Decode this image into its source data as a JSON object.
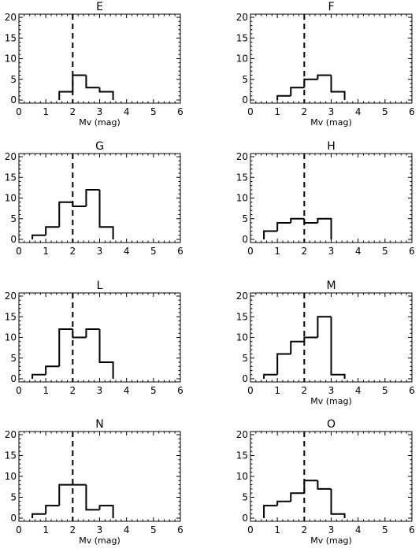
{
  "chart_data": [
    {
      "type": "bar",
      "title": "E",
      "xlabel": "Mv (mag)",
      "ylabel": "",
      "xlim": [
        0,
        6
      ],
      "ylim": [
        0,
        20
      ],
      "xticks": [
        "0",
        "1",
        "2",
        "3",
        "4",
        "5",
        "6"
      ],
      "yticks": [
        "0",
        "5",
        "10",
        "15",
        "20"
      ],
      "reference_line_x": 2,
      "bin_edges": [
        1.5,
        2.0,
        2.5,
        3.0,
        3.5
      ],
      "values": [
        2,
        6,
        3,
        2
      ]
    },
    {
      "type": "bar",
      "title": "F",
      "xlabel": "Mv (mag)",
      "ylabel": "",
      "xlim": [
        0,
        6
      ],
      "ylim": [
        0,
        20
      ],
      "xticks": [
        "0",
        "1",
        "2",
        "3",
        "4",
        "5",
        "6"
      ],
      "yticks": [
        "0",
        "5",
        "10",
        "15",
        "20"
      ],
      "reference_line_x": 2,
      "bin_edges": [
        1.0,
        1.5,
        2.0,
        2.5,
        3.0,
        3.5
      ],
      "values": [
        1,
        3,
        5,
        6,
        2
      ]
    },
    {
      "type": "bar",
      "title": "G",
      "xlabel": "",
      "ylabel": "",
      "xlim": [
        0,
        6
      ],
      "ylim": [
        0,
        20
      ],
      "xticks": [
        "0",
        "1",
        "2",
        "3",
        "4",
        "5",
        "6"
      ],
      "yticks": [
        "0",
        "5",
        "10",
        "15",
        "20"
      ],
      "reference_line_x": 2,
      "bin_edges": [
        0.5,
        1.0,
        1.5,
        2.0,
        2.5,
        3.0,
        3.5
      ],
      "values": [
        1,
        3,
        9,
        8,
        12,
        3
      ]
    },
    {
      "type": "bar",
      "title": "H",
      "xlabel": "",
      "ylabel": "",
      "xlim": [
        0,
        6
      ],
      "ylim": [
        0,
        20
      ],
      "xticks": [
        "0",
        "1",
        "2",
        "3",
        "4",
        "5",
        "6"
      ],
      "yticks": [
        "0",
        "5",
        "10",
        "15",
        "20"
      ],
      "reference_line_x": 2,
      "bin_edges": [
        0.5,
        1.0,
        1.5,
        2.0,
        2.5,
        3.0
      ],
      "values": [
        2,
        4,
        5,
        4,
        5
      ]
    },
    {
      "type": "bar",
      "title": "L",
      "xlabel": "",
      "ylabel": "",
      "xlim": [
        0,
        6
      ],
      "ylim": [
        0,
        20
      ],
      "xticks": [
        "0",
        "1",
        "2",
        "3",
        "4",
        "5",
        "6"
      ],
      "yticks": [
        "0",
        "5",
        "10",
        "15",
        "20"
      ],
      "reference_line_x": 2,
      "bin_edges": [
        0.5,
        1.0,
        1.5,
        2.0,
        2.5,
        3.0,
        3.5
      ],
      "values": [
        1,
        3,
        12,
        10,
        12,
        4
      ]
    },
    {
      "type": "bar",
      "title": "M",
      "xlabel": "Mv (mag)",
      "ylabel": "",
      "xlim": [
        0,
        6
      ],
      "ylim": [
        0,
        20
      ],
      "xticks": [
        "0",
        "1",
        "2",
        "3",
        "4",
        "5",
        "6"
      ],
      "yticks": [
        "0",
        "5",
        "10",
        "15",
        "20"
      ],
      "reference_line_x": 2,
      "bin_edges": [
        0.5,
        1.0,
        1.5,
        2.0,
        2.5,
        3.0,
        3.5
      ],
      "values": [
        1,
        6,
        9,
        10,
        15,
        1
      ]
    },
    {
      "type": "bar",
      "title": "N",
      "xlabel": "Mv (mag)",
      "ylabel": "",
      "xlim": [
        0,
        6
      ],
      "ylim": [
        0,
        20
      ],
      "xticks": [
        "0",
        "1",
        "2",
        "3",
        "4",
        "5",
        "6"
      ],
      "yticks": [
        "0",
        "5",
        "10",
        "15",
        "20"
      ],
      "reference_line_x": 2,
      "bin_edges": [
        0.5,
        1.0,
        1.5,
        2.0,
        2.5,
        3.0,
        3.5
      ],
      "values": [
        1,
        3,
        8,
        8,
        2,
        3
      ]
    },
    {
      "type": "bar",
      "title": "O",
      "xlabel": "Mv (mag)",
      "ylabel": "",
      "xlim": [
        0,
        6
      ],
      "ylim": [
        0,
        20
      ],
      "xticks": [
        "0",
        "1",
        "2",
        "3",
        "4",
        "5",
        "6"
      ],
      "yticks": [
        "0",
        "5",
        "10",
        "15",
        "20"
      ],
      "reference_line_x": 2,
      "bin_edges": [
        0.5,
        1.0,
        1.5,
        2.0,
        2.5,
        3.0,
        3.5
      ],
      "values": [
        3,
        4,
        6,
        9,
        7,
        1
      ]
    }
  ]
}
